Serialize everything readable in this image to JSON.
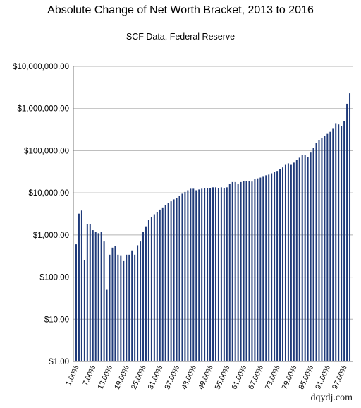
{
  "chart_data": {
    "type": "bar",
    "title": "Absolute Change of Net Worth Bracket, 2013 to 2016",
    "subtitle": "SCF Data, Federal Reserve",
    "xlabel": "",
    "ylabel": "",
    "y_scale": "log",
    "ylim": [
      1,
      10000000
    ],
    "y_ticks": [
      1,
      10,
      100,
      1000,
      10000,
      100000,
      1000000,
      10000000
    ],
    "y_tick_labels": [
      "$1.00",
      "$10.00",
      "$100.00",
      "$1,000.00",
      "$10,000.00",
      "$100,000.00",
      "$1,000,000.00",
      "$10,000,000.00"
    ],
    "x_tick_labels": [
      "1.00%",
      "7.00%",
      "13.00%",
      "19.00%",
      "25.00%",
      "31.00%",
      "37.00%",
      "43.00%",
      "49.00%",
      "55.00%",
      "61.00%",
      "67.00%",
      "73.00%",
      "79.00%",
      "85.00%",
      "91.00%",
      "97.00%"
    ],
    "grid": "horizontal",
    "legend": "none",
    "bar_color": "#1f3a7a",
    "categories": [
      "1.00%",
      "2.00%",
      "3.00%",
      "4.00%",
      "5.00%",
      "6.00%",
      "7.00%",
      "8.00%",
      "9.00%",
      "10.00%",
      "11.00%",
      "12.00%",
      "13.00%",
      "14.00%",
      "15.00%",
      "16.00%",
      "17.00%",
      "18.00%",
      "19.00%",
      "20.00%",
      "21.00%",
      "22.00%",
      "23.00%",
      "24.00%",
      "25.00%",
      "26.00%",
      "27.00%",
      "28.00%",
      "29.00%",
      "30.00%",
      "31.00%",
      "32.00%",
      "33.00%",
      "34.00%",
      "35.00%",
      "36.00%",
      "37.00%",
      "38.00%",
      "39.00%",
      "40.00%",
      "41.00%",
      "42.00%",
      "43.00%",
      "44.00%",
      "45.00%",
      "46.00%",
      "47.00%",
      "48.00%",
      "49.00%",
      "50.00%",
      "51.00%",
      "52.00%",
      "53.00%",
      "54.00%",
      "55.00%",
      "56.00%",
      "57.00%",
      "58.00%",
      "59.00%",
      "60.00%",
      "61.00%",
      "62.00%",
      "63.00%",
      "64.00%",
      "65.00%",
      "66.00%",
      "67.00%",
      "68.00%",
      "69.00%",
      "70.00%",
      "71.00%",
      "72.00%",
      "73.00%",
      "74.00%",
      "75.00%",
      "76.00%",
      "77.00%",
      "78.00%",
      "79.00%",
      "80.00%",
      "81.00%",
      "82.00%",
      "83.00%",
      "84.00%",
      "85.00%",
      "86.00%",
      "87.00%",
      "88.00%",
      "89.00%",
      "90.00%",
      "91.00%",
      "92.00%",
      "93.00%",
      "94.00%",
      "95.00%",
      "96.00%",
      "97.00%",
      "98.00%",
      "99.00%"
    ],
    "values": [
      600,
      3200,
      3800,
      250,
      1800,
      1800,
      1300,
      1200,
      1100,
      1200,
      700,
      50,
      340,
      500,
      550,
      340,
      330,
      240,
      340,
      340,
      430,
      340,
      570,
      700,
      1200,
      1600,
      2300,
      2700,
      3100,
      3500,
      4000,
      4500,
      5200,
      5800,
      6300,
      7000,
      7600,
      8500,
      9500,
      10500,
      11500,
      12500,
      12500,
      11500,
      12000,
      12500,
      13000,
      13000,
      13000,
      13500,
      13500,
      13000,
      13500,
      13000,
      13500,
      16000,
      18000,
      18000,
      16000,
      18000,
      19000,
      19000,
      19000,
      18500,
      21000,
      22000,
      23000,
      24000,
      26000,
      27000,
      29000,
      31000,
      33000,
      36000,
      40000,
      46000,
      50000,
      46000,
      52000,
      60000,
      68000,
      80000,
      78000,
      70000,
      90000,
      115000,
      150000,
      180000,
      200000,
      220000,
      250000,
      280000,
      330000,
      450000,
      420000,
      390000,
      500000,
      1300000,
      2300000
    ]
  },
  "watermark": "dqydj.com"
}
